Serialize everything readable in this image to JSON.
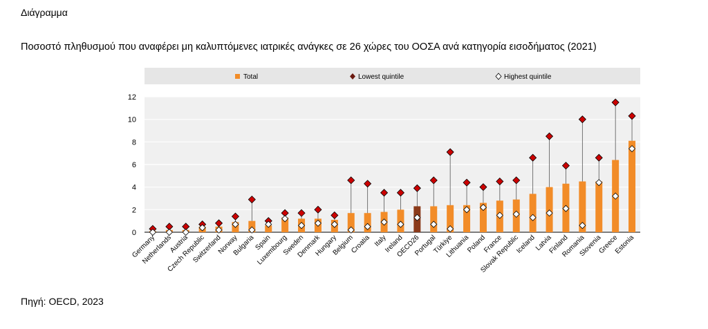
{
  "header": {
    "label": "Διάγραμμα"
  },
  "title": "Ποσοστό πληθυσμού που αναφέρει μη καλυπτόμενες ιατρικές ανάγκες σε 26 χώρες του ΟΟΣΑ ανά κατηγορία εισοδήματος (2021)",
  "source": "Πηγή: OECD, 2023",
  "chart_data": {
    "type": "bar",
    "legend_position": "top",
    "grid": true,
    "ylim": [
      0,
      12
    ],
    "yticks": [
      0,
      2,
      4,
      6,
      8,
      10,
      12
    ],
    "colors": {
      "total": "#F28C28",
      "oecd": "#8B3A1A",
      "lowest": "#CC0000",
      "highest": "#FFFFFF",
      "legend_bg": "#E6E6E6",
      "plot_bg": "#F0F0F0"
    },
    "categories": [
      "Germany",
      "Netherlands",
      "Austria",
      "Czech Republic",
      "Switzerland",
      "Norway",
      "Bulgaria",
      "Spain",
      "Luxembourg",
      "Sweden",
      "Denmark",
      "Hungary",
      "Belgium",
      "Croatia",
      "Italy",
      "Ireland",
      "OECD26",
      "Portugal",
      "Türkiye",
      "Lithuania",
      "Poland",
      "France",
      "Slovak Republic",
      "Iceland",
      "Latvia",
      "Finland",
      "Romania",
      "Slovenia",
      "Greece",
      "Estonia"
    ],
    "series": [
      {
        "name": "Total",
        "values": [
          0.1,
          0.2,
          0.2,
          0.5,
          0.5,
          0.9,
          1.0,
          0.6,
          1.3,
          1.2,
          1.2,
          1.1,
          1.7,
          1.7,
          1.8,
          2.0,
          2.3,
          2.3,
          2.4,
          2.4,
          2.6,
          2.8,
          2.9,
          3.4,
          4.0,
          4.3,
          4.5,
          4.5,
          6.4,
          8.1
        ]
      },
      {
        "name": "Lowest quintile",
        "values": [
          0.3,
          0.5,
          0.5,
          0.7,
          0.8,
          1.4,
          2.9,
          1.0,
          1.7,
          1.7,
          2.0,
          1.5,
          4.6,
          4.3,
          3.5,
          3.5,
          3.9,
          4.6,
          7.1,
          4.4,
          4.0,
          4.5,
          4.6,
          6.6,
          8.5,
          5.9,
          10.0,
          6.6,
          11.5,
          10.3
        ]
      },
      {
        "name": "Highest quintile",
        "values": [
          0.0,
          0.0,
          0.0,
          0.4,
          0.2,
          0.7,
          0.2,
          0.7,
          1.2,
          0.6,
          0.8,
          0.7,
          0.2,
          0.5,
          0.9,
          0.7,
          1.3,
          0.7,
          0.3,
          2.0,
          2.2,
          1.5,
          1.6,
          1.3,
          1.7,
          2.1,
          0.6,
          4.4,
          3.2,
          7.4
        ]
      }
    ]
  }
}
